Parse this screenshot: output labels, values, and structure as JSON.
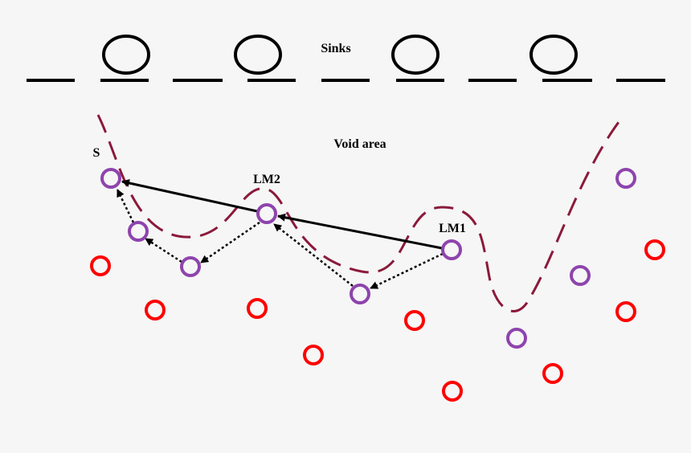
{
  "labels": {
    "sinks": "Sinks",
    "void_area": "Void area",
    "source": "S",
    "lm2": "LM2",
    "lm1": "LM1"
  }
}
